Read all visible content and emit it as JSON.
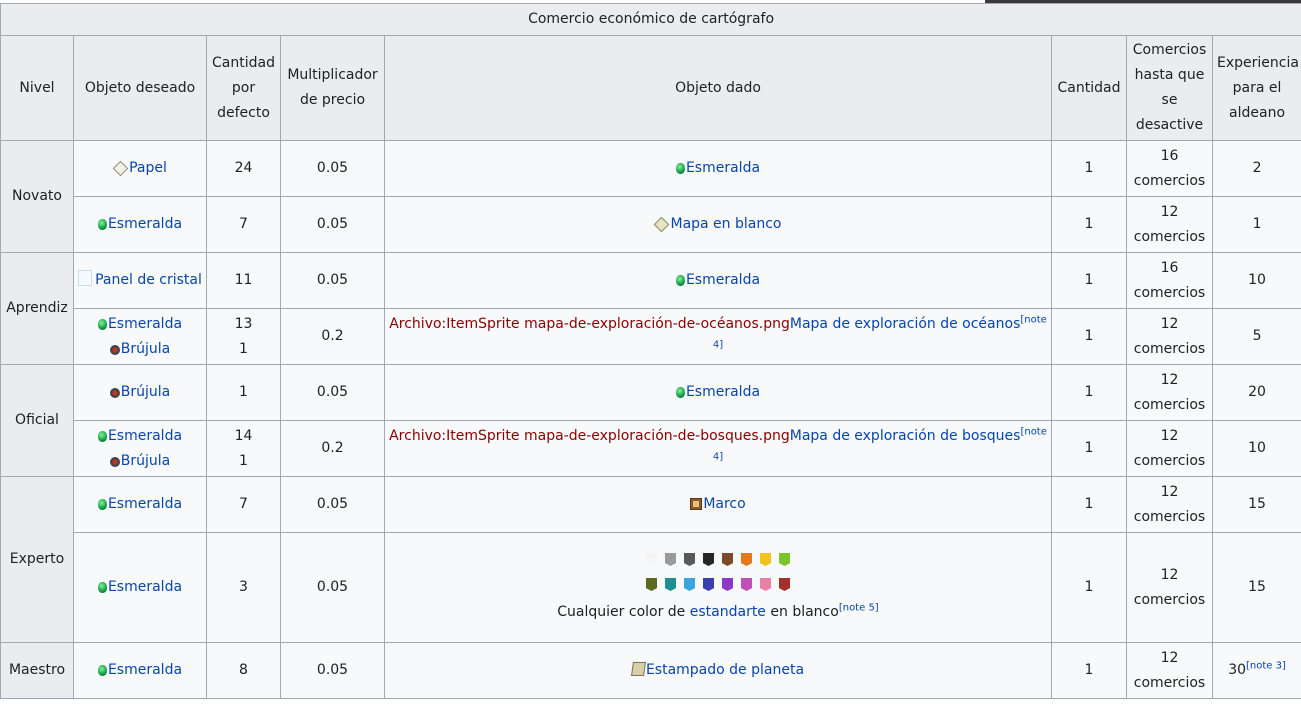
{
  "table": {
    "caption": "Comercio económico de cartógrafo",
    "headers": [
      "Nivel",
      "Objeto deseado",
      "Cantidad por defecto",
      "Multiplicador de precio",
      "Objeto dado",
      "Cantidad",
      "Comercios hasta que se desactive",
      "Experiencia para el aldeano"
    ],
    "levels": [
      "Novato",
      "Aprendiz",
      "Oficial",
      "Experto",
      "Maestro"
    ],
    "rows": [
      {
        "wanted": [
          "Papel"
        ],
        "qty": [
          "24"
        ],
        "mult": "0.05",
        "given_prefix": "",
        "given": "Esmeralda",
        "given_note": "",
        "amount": "1",
        "trades": "16 comercios",
        "xp": "2",
        "xp_note": ""
      },
      {
        "wanted": [
          "Esmeralda"
        ],
        "qty": [
          "7"
        ],
        "mult": "0.05",
        "given_prefix": "",
        "given": "Mapa en blanco",
        "given_note": "",
        "amount": "1",
        "trades": "12 comercios",
        "xp": "1",
        "xp_note": ""
      },
      {
        "wanted": [
          "Panel de cristal"
        ],
        "qty": [
          "11"
        ],
        "mult": "0.05",
        "given_prefix": "",
        "given": "Esmeralda",
        "given_note": "",
        "amount": "1",
        "trades": "16 comercios",
        "xp": "10",
        "xp_note": ""
      },
      {
        "wanted": [
          "Esmeralda",
          "Brújula"
        ],
        "qty": [
          "13",
          "1"
        ],
        "mult": "0.2",
        "given_prefix": "Archivo:ItemSprite mapa-de-exploración-de-océanos.png",
        "given": "Mapa de exploración de océanos",
        "given_note": "[note 4]",
        "amount": "1",
        "trades": "12 comercios",
        "xp": "5",
        "xp_note": ""
      },
      {
        "wanted": [
          "Brújula"
        ],
        "qty": [
          "1"
        ],
        "mult": "0.05",
        "given_prefix": "",
        "given": "Esmeralda",
        "given_note": "",
        "amount": "1",
        "trades": "12 comercios",
        "xp": "20",
        "xp_note": ""
      },
      {
        "wanted": [
          "Esmeralda",
          "Brújula"
        ],
        "qty": [
          "14",
          "1"
        ],
        "mult": "0.2",
        "given_prefix": "Archivo:ItemSprite mapa-de-exploración-de-bosques.png",
        "given": "Mapa de exploración de bosques",
        "given_note": "[note 4]",
        "amount": "1",
        "trades": "12 comercios",
        "xp": "10",
        "xp_note": ""
      },
      {
        "wanted": [
          "Esmeralda"
        ],
        "qty": [
          "7"
        ],
        "mult": "0.05",
        "given_prefix": "",
        "given": "Marco",
        "given_note": "",
        "amount": "1",
        "trades": "12 comercios",
        "xp": "15",
        "xp_note": ""
      },
      {
        "wanted": [
          "Esmeralda"
        ],
        "qty": [
          "3"
        ],
        "mult": "0.05",
        "given_pre": "Cualquier color de",
        "given": "estandarte",
        "given_post": "en blanco",
        "given_note": "[note 5]",
        "amount": "1",
        "trades": "12 comercios",
        "xp": "15",
        "xp_note": ""
      },
      {
        "wanted": [
          "Esmeralda"
        ],
        "qty": [
          "8"
        ],
        "mult": "0.05",
        "given_prefix": "",
        "given": "Estampado de planeta",
        "given_note": "",
        "amount": "1",
        "trades": "12 comercios",
        "xp": "30",
        "xp_note": "[note 3]"
      }
    ],
    "banner_colors": [
      "#f5f5f5",
      "#9a9a9a",
      "#595959",
      "#262626",
      "#7b4a28",
      "#e07a1f",
      "#f2c21f",
      "#7cc42a",
      "#5b6a22",
      "#1f8e8e",
      "#3aa6dc",
      "#3b3fae",
      "#8a3ac4",
      "#c14fb8",
      "#e87fa8",
      "#a4302a"
    ]
  }
}
